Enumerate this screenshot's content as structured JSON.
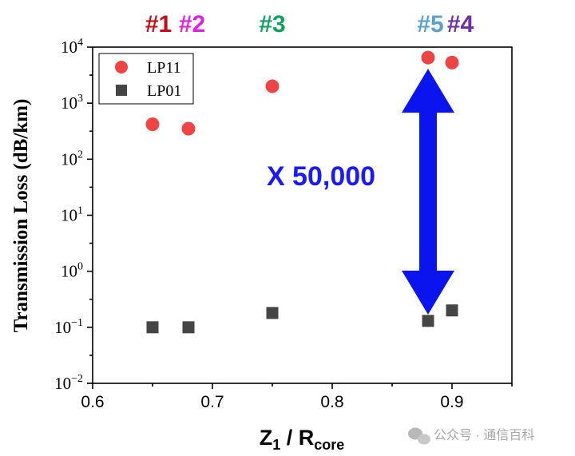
{
  "chart_data": {
    "type": "scatter",
    "xlabel": {
      "main": "Z",
      "sub1": "1",
      "mid": " / R",
      "sub2": "core"
    },
    "ylabel": "Transmission Loss (dB/km)",
    "xlim": [
      0.6,
      0.95
    ],
    "ylim_log10": [
      -2,
      4
    ],
    "y_scale": "log",
    "x_ticks": [
      {
        "value": 0.6,
        "label": "0.6"
      },
      {
        "value": 0.7,
        "label": "0.7"
      },
      {
        "value": 0.8,
        "label": "0.8"
      },
      {
        "value": 0.9,
        "label": "0.9"
      }
    ],
    "y_ticks": [
      {
        "exp": -2,
        "base": "10",
        "sup": "−2"
      },
      {
        "exp": -1,
        "base": "10",
        "sup": "−1"
      },
      {
        "exp": 0,
        "base": "10",
        "sup": "0"
      },
      {
        "exp": 1,
        "base": "10",
        "sup": "1"
      },
      {
        "exp": 2,
        "base": "10",
        "sup": "2"
      },
      {
        "exp": 3,
        "base": "10",
        "sup": "3"
      },
      {
        "exp": 4,
        "base": "10",
        "sup": "4"
      }
    ],
    "legend_position": "top-left",
    "series": [
      {
        "name": "LP11",
        "marker": "circle",
        "color": "#ee4444",
        "points": [
          {
            "x": 0.65,
            "y": 420
          },
          {
            "x": 0.68,
            "y": 350
          },
          {
            "x": 0.75,
            "y": 2000
          },
          {
            "x": 0.88,
            "y": 6500
          },
          {
            "x": 0.9,
            "y": 5300
          }
        ]
      },
      {
        "name": "LP01",
        "marker": "square",
        "color": "#454545",
        "points": [
          {
            "x": 0.65,
            "y": 0.1
          },
          {
            "x": 0.68,
            "y": 0.1
          },
          {
            "x": 0.75,
            "y": 0.18
          },
          {
            "x": 0.88,
            "y": 0.13
          },
          {
            "x": 0.9,
            "y": 0.2
          }
        ]
      }
    ],
    "fiber_labels": [
      {
        "text": "#1",
        "x": 0.655,
        "color": "#c0101a"
      },
      {
        "text": "#2",
        "x": 0.683,
        "color": "#e020e0"
      },
      {
        "text": "#3",
        "x": 0.75,
        "color": "#10a060"
      },
      {
        "text": "#5",
        "x": 0.882,
        "color": "#5aa0d0"
      },
      {
        "text": "#4",
        "x": 0.907,
        "color": "#7030a0"
      }
    ],
    "annotation": {
      "text": "X 50,000",
      "color": "#1a1aff"
    },
    "arrow": {
      "x": 0.88,
      "y_top": 6500,
      "y_bottom": 0.13,
      "color": "#0a14ee"
    }
  },
  "watermark": "公众号 · 通信百科"
}
